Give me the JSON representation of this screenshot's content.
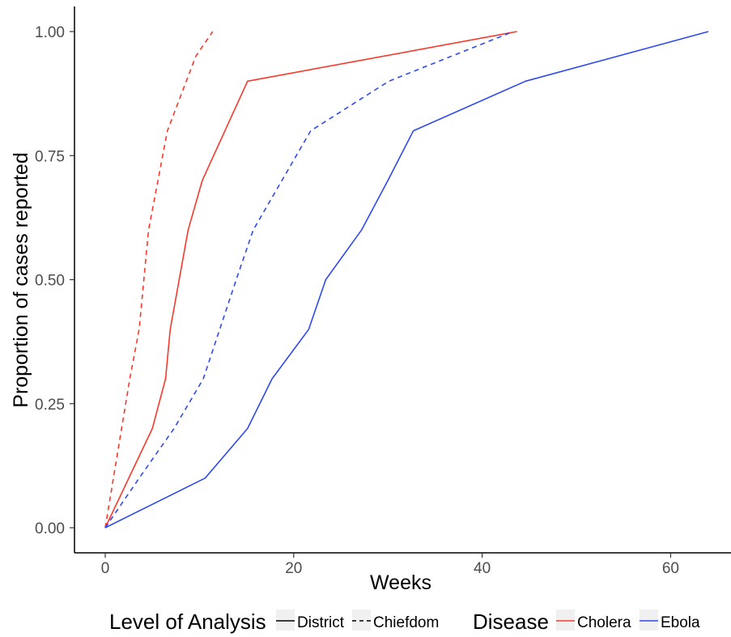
{
  "chart_data": {
    "type": "line",
    "xlabel": "Weeks",
    "ylabel": "Proportion of cases reported",
    "xlim": [
      -4,
      66
    ],
    "ylim": [
      -0.05,
      1.05
    ],
    "xticks": [
      0,
      20,
      40,
      60
    ],
    "yticks": [
      0,
      0.25,
      0.5,
      0.75,
      1
    ],
    "xtick_labels": [
      "0",
      "20",
      "40",
      "60"
    ],
    "ytick_labels": [
      "0.00",
      "0.25",
      "0.50",
      "0.75",
      "1.00"
    ],
    "grid": false,
    "legend_placement": "bottom",
    "legends": {
      "linetype": {
        "title": "Level of Analysis",
        "entries": [
          {
            "label": "District",
            "dash": "solid"
          },
          {
            "label": "Chiefdom",
            "dash": "dashed"
          }
        ]
      },
      "color": {
        "title": "Disease",
        "entries": [
          {
            "label": "Cholera",
            "color": "#f8382a"
          },
          {
            "label": "Ebola",
            "color": "#2e49f1"
          }
        ]
      }
    },
    "series": [
      {
        "disease": "Cholera",
        "level": "Chiefdom",
        "color": "#f8382a",
        "dash": "dashed",
        "x": [
          0,
          2.6,
          3.6,
          4.6,
          6.6,
          8.6,
          9.6,
          11.4
        ],
        "y": [
          0,
          0.3,
          0.4,
          0.6,
          0.8,
          0.9,
          0.95,
          1.0
        ]
      },
      {
        "disease": "Cholera",
        "level": "District",
        "color": "#f8382a",
        "dash": "solid",
        "x": [
          0,
          5,
          6.4,
          6.9,
          8.8,
          10.3,
          15.1,
          43.7
        ],
        "y": [
          0,
          0.2,
          0.3,
          0.4,
          0.6,
          0.7,
          0.9,
          1.0
        ]
      },
      {
        "disease": "Ebola",
        "level": "Chiefdom",
        "color": "#2e49f1",
        "dash": "dashed",
        "x": [
          0,
          3.6,
          7.3,
          10.4,
          13.9,
          15.7,
          21.8,
          30.1,
          43.3
        ],
        "y": [
          0,
          0.1,
          0.2,
          0.3,
          0.5,
          0.6,
          0.8,
          0.9,
          1.0
        ]
      },
      {
        "disease": "Ebola",
        "level": "District",
        "color": "#2e49f1",
        "dash": "solid",
        "x": [
          0,
          10.6,
          15.1,
          17.7,
          21.6,
          23.4,
          27.2,
          30,
          32.7,
          44.6,
          64
        ],
        "y": [
          0,
          0.1,
          0.2,
          0.3,
          0.4,
          0.5,
          0.6,
          0.7,
          0.8,
          0.9,
          1.0
        ]
      }
    ]
  }
}
